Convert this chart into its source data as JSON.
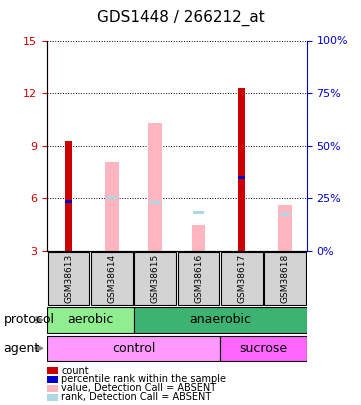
{
  "title": "GDS1448 / 266212_at",
  "samples": [
    "GSM38613",
    "GSM38614",
    "GSM38615",
    "GSM38616",
    "GSM38617",
    "GSM38618"
  ],
  "ylim_left": [
    3,
    15
  ],
  "ylim_right": [
    0,
    100
  ],
  "yticks_left": [
    3,
    6,
    9,
    12,
    15
  ],
  "yticks_right": [
    0,
    25,
    50,
    75,
    100
  ],
  "red_bars": [
    9.3,
    null,
    null,
    null,
    12.3,
    null
  ],
  "blue_squares": [
    5.85,
    null,
    null,
    null,
    7.2,
    null
  ],
  "pink_bars": [
    null,
    8.1,
    10.3,
    4.5,
    null,
    5.6
  ],
  "lightblue_squares": [
    null,
    6.05,
    5.75,
    5.2,
    null,
    5.1
  ],
  "protocol_groups": [
    {
      "label": "aerobic",
      "start": 0,
      "end": 2,
      "color": "#90EE90"
    },
    {
      "label": "anaerobic",
      "start": 2,
      "end": 6,
      "color": "#3CB371"
    }
  ],
  "agent_groups": [
    {
      "label": "control",
      "start": 0,
      "end": 4,
      "color": "#FF99FF"
    },
    {
      "label": "sucrose",
      "start": 4,
      "end": 6,
      "color": "#FF66FF"
    }
  ],
  "legend_items": [
    {
      "color": "#CC0000",
      "label": "count"
    },
    {
      "color": "#0000CC",
      "label": "percentile rank within the sample"
    },
    {
      "color": "#FFB6C1",
      "label": "value, Detection Call = ABSENT"
    },
    {
      "color": "#ADD8E6",
      "label": "rank, Detection Call = ABSENT"
    }
  ],
  "bar_width": 0.35,
  "protocol_label": "protocol",
  "agent_label": "agent",
  "left_tick_color": "#CC0000",
  "right_tick_color": "#0000CC",
  "background_color": "#ffffff",
  "plot_bg": "#ffffff",
  "grid_color": "#000000"
}
